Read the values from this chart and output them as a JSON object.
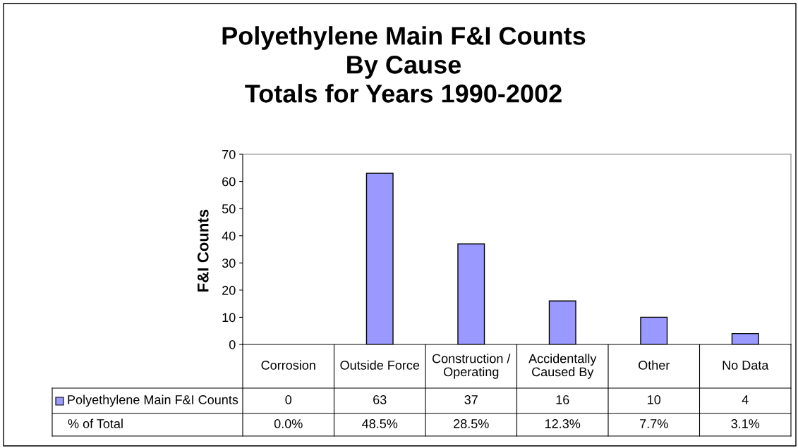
{
  "chart_data": {
    "type": "bar",
    "title": "Polyethylene Main F&I Counts\nBy Cause\nTotals for Years 1990-2002",
    "ylabel": "F&I Counts",
    "categories": [
      "Corrosion",
      "Outside Force",
      "Construction /\nOperating",
      "Accidentally\nCaused By",
      "Other",
      "No Data"
    ],
    "series": [
      {
        "name": "Polyethylene Main F&I Counts",
        "color": "#9999ff",
        "values": [
          0,
          63,
          37,
          16,
          10,
          4
        ]
      }
    ],
    "data_labels": true,
    "annotations": [
      "% of Total",
      "0.0%",
      "48.5%",
      "28.5%",
      "12.3%",
      "7.7%",
      "3.1%"
    ],
    "ylim": [
      0,
      70
    ],
    "yticks": [
      0,
      10,
      20,
      30,
      40,
      50,
      60,
      70
    ],
    "grid": false
  }
}
